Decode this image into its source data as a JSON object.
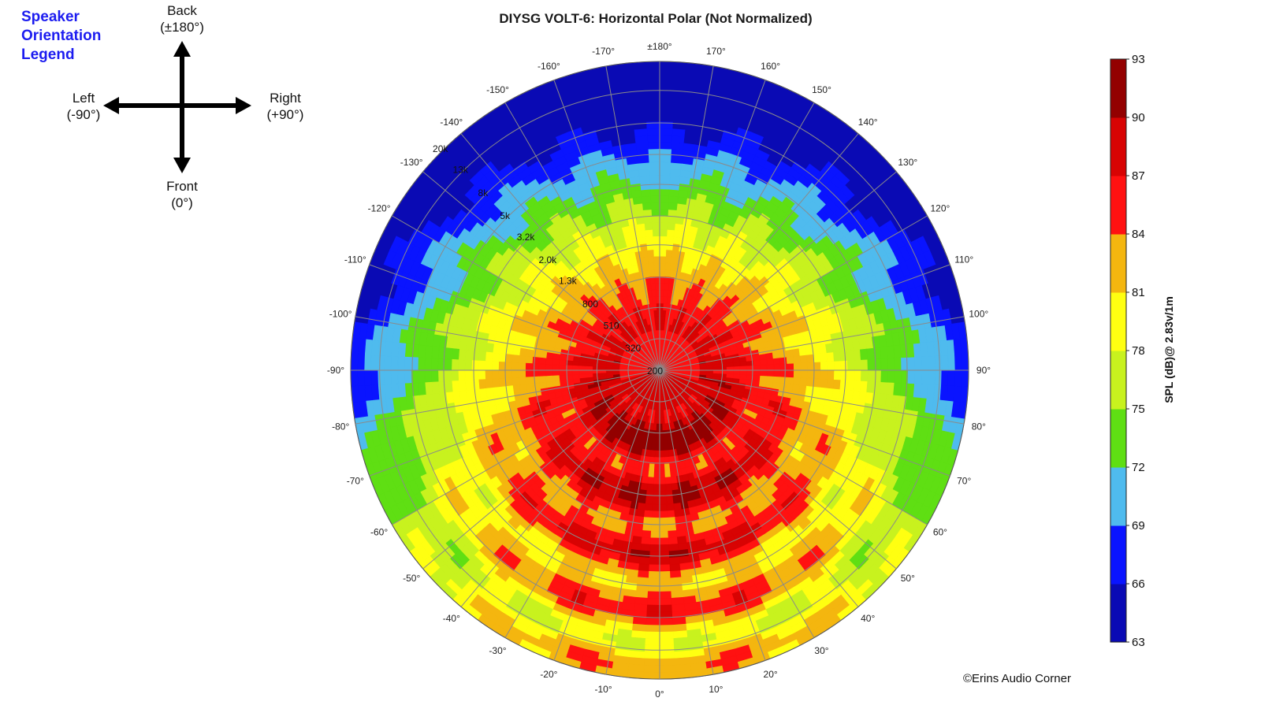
{
  "chart_data": {
    "type": "heatmap",
    "subtype": "polar-contour",
    "title": "DIYSG VOLT-6: Horizontal Polar (Not Normalized)",
    "angle_ticks": [
      "0°",
      "10°",
      "20°",
      "30°",
      "40°",
      "50°",
      "60°",
      "70°",
      "80°",
      "90°",
      "100°",
      "110°",
      "120°",
      "130°",
      "140°",
      "150°",
      "160°",
      "170°",
      "±180°",
      "-170°",
      "-160°",
      "-150°",
      "-140°",
      "-130°",
      "-120°",
      "-110°",
      "-100°",
      "-90°",
      "-80°",
      "-70°",
      "-60°",
      "-50°",
      "-40°",
      "-30°",
      "-20°",
      "-10°"
    ],
    "angle_values": [
      0,
      10,
      20,
      30,
      40,
      50,
      60,
      70,
      80,
      90,
      100,
      110,
      120,
      130,
      140,
      150,
      160,
      170,
      180,
      -170,
      -160,
      -150,
      -140,
      -130,
      -120,
      -110,
      -100,
      -90,
      -80,
      -70,
      -60,
      -50,
      -40,
      -30,
      -20,
      -10
    ],
    "frequency_ticks": [
      "200",
      "320",
      "510",
      "800",
      "1.3k",
      "2.0k",
      "3.2k",
      "5k",
      "8k",
      "13k",
      "20k"
    ],
    "frequency_values_hz": [
      200,
      320,
      510,
      800,
      1300,
      2000,
      3200,
      5000,
      8000,
      13000,
      20000
    ],
    "colorbar": {
      "label": "SPL (dB)@ 2.83v/1m",
      "ticks": [
        "63",
        "66",
        "69",
        "72",
        "75",
        "78",
        "81",
        "84",
        "87",
        "90",
        "93"
      ],
      "range": [
        63,
        93
      ],
      "colors": [
        "#0a0ab4",
        "#0a14ff",
        "#4fbbee",
        "#5fdf13",
        "#c8f21e",
        "#ffff11",
        "#f4b60f",
        "#ff1111",
        "#d80303",
        "#930000"
      ]
    },
    "grid": true
  },
  "orientation_legend": {
    "title_lines": [
      "Speaker",
      "Orientation",
      "Legend"
    ],
    "back": "Back",
    "back_angle": "(±180°)",
    "left": "Left",
    "left_angle": "(-90°)",
    "right": "Right",
    "right_angle": "(+90°)",
    "front": "Front",
    "front_angle": "(0°)"
  },
  "copyright": "©Erins Audio Corner"
}
